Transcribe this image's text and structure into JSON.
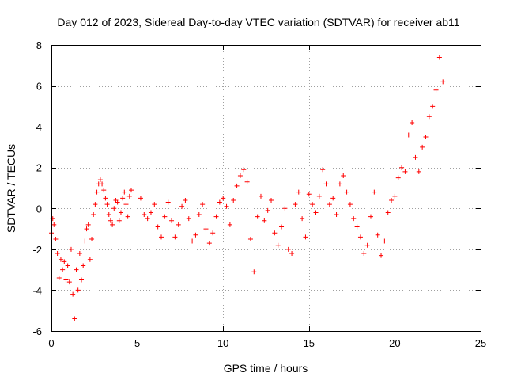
{
  "chart_data": {
    "type": "scatter",
    "title": "Day 012 of 2023, Sidereal Day-to-day VTEC variation (SDTVAR) for receiver ab11",
    "xlabel": "GPS time / hours",
    "ylabel": "SDTVAR / TECUs",
    "xlim": [
      0,
      25
    ],
    "ylim": [
      -6,
      8
    ],
    "xticks": [
      0,
      5,
      10,
      15,
      20,
      25
    ],
    "yticks": [
      -6,
      -4,
      -2,
      0,
      2,
      4,
      6,
      8
    ],
    "grid": true,
    "marker": "+",
    "color": "#ff0000",
    "series": [
      {
        "name": "SDTVAR",
        "x": [
          0.0,
          0.08,
          0.15,
          0.25,
          0.35,
          0.45,
          0.55,
          0.65,
          0.75,
          0.85,
          0.95,
          1.05,
          1.15,
          1.25,
          1.35,
          1.45,
          1.55,
          1.65,
          1.75,
          1.85,
          1.95,
          2.05,
          2.15,
          2.25,
          2.35,
          2.45,
          2.55,
          2.65,
          2.75,
          2.85,
          2.95,
          3.05,
          3.15,
          3.25,
          3.35,
          3.45,
          3.55,
          3.65,
          3.75,
          3.85,
          3.95,
          4.05,
          4.15,
          4.25,
          4.35,
          4.45,
          4.55,
          4.65
        ],
        "y": [
          -1.2,
          -0.5,
          -0.8,
          -1.5,
          -2.2,
          -3.4,
          -2.5,
          -3.0,
          -2.6,
          -3.5,
          -2.8,
          -3.6,
          -2.0,
          -4.2,
          -5.4,
          -3.0,
          -4.0,
          -2.2,
          -3.5,
          -2.8,
          -1.6,
          -1.0,
          -0.8,
          -2.5,
          -1.5,
          -0.3,
          0.2,
          0.8,
          1.2,
          1.4,
          1.2,
          0.9,
          0.5,
          0.2,
          -0.3,
          -0.6,
          -0.8,
          0.0,
          0.4,
          0.3,
          -0.6,
          -0.2,
          0.5,
          0.8,
          0.2,
          -0.4,
          0.6,
          0.9
        ]
      },
      {
        "name": "SDTVAR",
        "x": [
          5.2,
          5.4,
          5.6,
          5.8,
          6.0,
          6.2,
          6.4,
          6.6,
          6.8,
          7.0,
          7.2,
          7.4,
          7.6,
          7.8,
          8.0,
          8.2,
          8.4,
          8.6,
          8.8,
          9.0,
          9.2,
          9.4,
          9.6,
          9.8,
          10.0,
          10.2,
          10.4,
          10.6,
          10.8,
          11.0,
          11.2,
          11.4,
          11.6,
          11.8,
          12.0,
          12.2,
          12.4,
          12.6,
          12.8,
          13.0,
          13.2,
          13.4,
          13.6,
          13.8,
          14.0,
          14.2,
          14.4,
          14.6,
          14.8
        ],
        "y": [
          0.5,
          -0.3,
          -0.5,
          -0.2,
          0.2,
          -0.9,
          -1.4,
          -0.4,
          0.3,
          -0.6,
          -1.4,
          -0.8,
          0.1,
          0.4,
          -0.5,
          -1.6,
          -1.3,
          -0.3,
          0.2,
          -1.0,
          -1.7,
          -1.2,
          -0.4,
          0.3,
          0.5,
          0.1,
          -0.8,
          0.4,
          1.1,
          1.6,
          1.9,
          1.3,
          -1.5,
          -3.1,
          -0.4,
          0.6,
          -0.6,
          -0.1,
          0.4,
          -1.2,
          -1.8,
          -0.9,
          0.0,
          -2.0,
          -2.2,
          0.2,
          0.8,
          -0.5,
          -1.4
        ]
      },
      {
        "name": "SDTVAR",
        "x": [
          15.0,
          15.2,
          15.4,
          15.6,
          15.8,
          16.0,
          16.2,
          16.4,
          16.6,
          16.8,
          17.0,
          17.2,
          17.4,
          17.6,
          17.8,
          18.0,
          18.2,
          18.4,
          18.6,
          18.8,
          19.0,
          19.2,
          19.4,
          19.6,
          19.8,
          20.0,
          20.2,
          20.4,
          20.6,
          20.8,
          21.0,
          21.2,
          21.4,
          21.6,
          21.8,
          22.0,
          22.2,
          22.4,
          22.6,
          22.8
        ],
        "y": [
          0.7,
          0.2,
          -0.2,
          0.6,
          1.9,
          1.2,
          0.2,
          0.5,
          -0.3,
          1.2,
          1.6,
          0.8,
          0.2,
          -0.5,
          -0.9,
          -1.4,
          -2.2,
          -1.8,
          -0.4,
          0.8,
          -1.3,
          -2.3,
          -1.6,
          -0.2,
          0.4,
          0.6,
          1.5,
          2.0,
          1.8,
          3.6,
          4.2,
          2.5,
          1.8,
          3.0,
          3.5,
          4.5,
          5.0,
          5.8,
          7.4,
          6.2
        ]
      }
    ]
  }
}
